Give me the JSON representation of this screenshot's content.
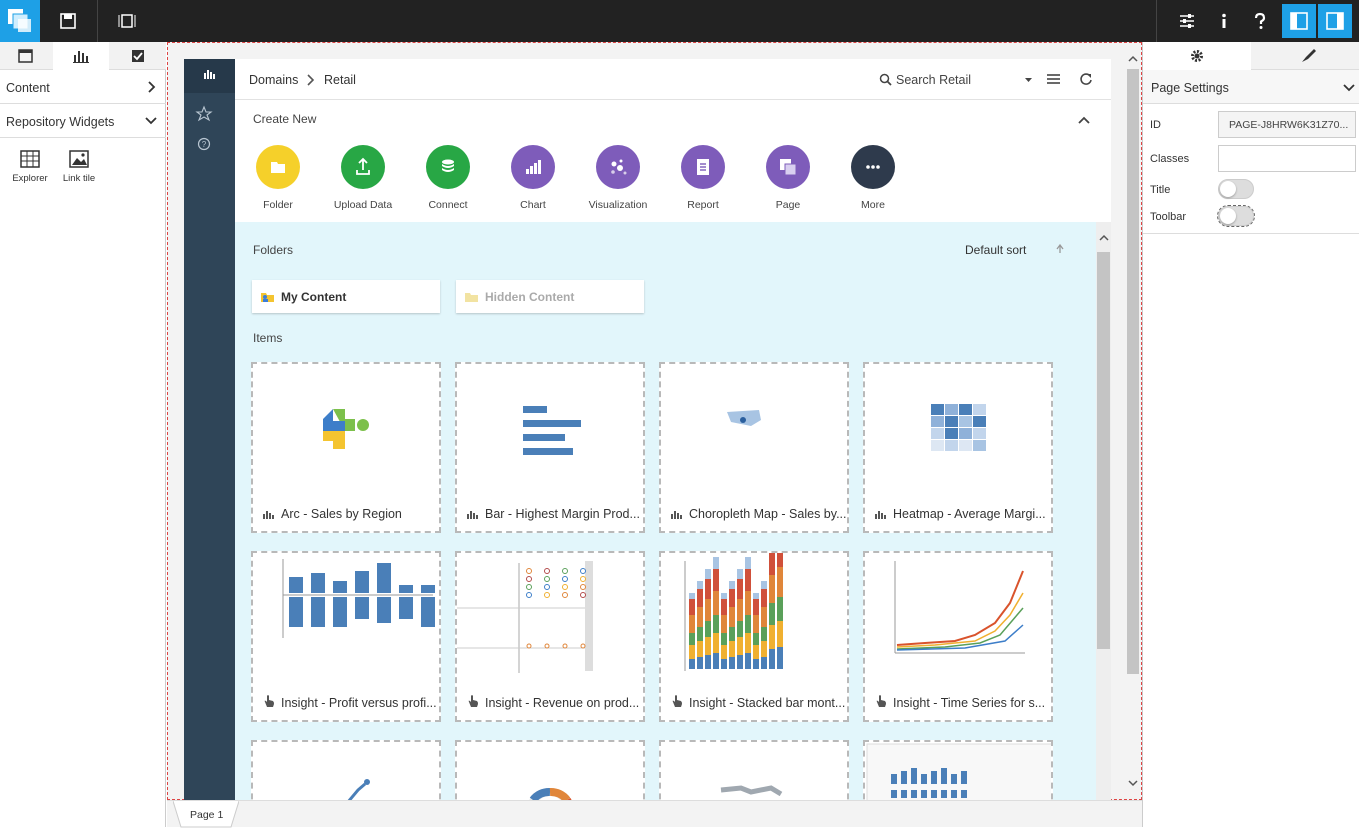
{
  "left_panel": {
    "sections": [
      "Content",
      "Repository Widgets"
    ],
    "widgets": [
      "Explorer",
      "Link tile"
    ]
  },
  "breadcrumb": [
    "Domains",
    "Retail"
  ],
  "search_placeholder": "Search Retail",
  "create_new": {
    "title": "Create New",
    "items": [
      "Folder",
      "Upload Data",
      "Connect",
      "Chart",
      "Visualization",
      "Report",
      "Page",
      "More"
    ]
  },
  "folders": {
    "title": "Folders",
    "sort": "Default sort",
    "items": [
      "My Content",
      "Hidden Content"
    ]
  },
  "items": {
    "title": "Items",
    "tiles": [
      "Arc - Sales by Region",
      "Bar - Highest Margin Prod...",
      "Choropleth Map - Sales by...",
      "Heatmap - Average Margi...",
      "Insight - Profit versus profi...",
      "Insight - Revenue on prod...",
      "Insight - Stacked bar mont...",
      "Insight - Time Series for s..."
    ]
  },
  "right_panel": {
    "title": "Page Settings",
    "id_label": "ID",
    "id_value": "PAGE-J8HRW6K31Z70...",
    "classes_label": "Classes",
    "title_label": "Title",
    "toolbar_label": "Toolbar"
  },
  "page_tab": "Page 1"
}
